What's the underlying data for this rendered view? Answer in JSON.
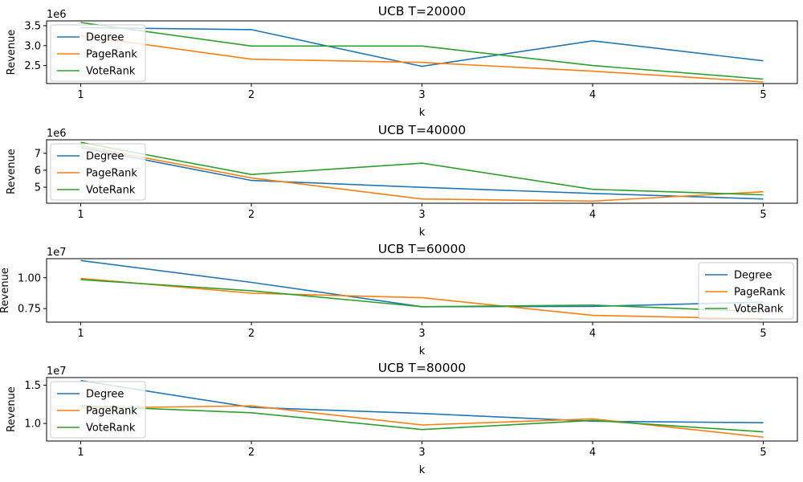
{
  "colors": {
    "Degree": "#1f77b4",
    "PageRank": "#ff7f0e",
    "VoteRank": "#2ca02c"
  },
  "chart_data": [
    {
      "type": "line",
      "title": "UCB T=20000",
      "xlabel": "k",
      "ylabel": "Revenue",
      "offset_label": "1e6",
      "scale": 1000000,
      "x": [
        1,
        2,
        3,
        4,
        5
      ],
      "ylim": [
        2.05,
        3.62
      ],
      "yticks": [
        2.5,
        3.0,
        3.5
      ],
      "ytick_labels": [
        "2.5",
        "3.0",
        "3.5"
      ],
      "legend": "upper-left",
      "series": [
        {
          "name": "Degree",
          "values": [
            3.45,
            3.4,
            2.48,
            3.12,
            2.62
          ]
        },
        {
          "name": "PageRank",
          "values": [
            3.25,
            2.66,
            2.58,
            2.36,
            2.09
          ]
        },
        {
          "name": "VoteRank",
          "values": [
            3.58,
            2.99,
            2.99,
            2.5,
            2.16
          ]
        }
      ]
    },
    {
      "type": "line",
      "title": "UCB T=40000",
      "xlabel": "k",
      "ylabel": "Revenue",
      "offset_label": "1e6",
      "scale": 1000000,
      "x": [
        1,
        2,
        3,
        4,
        5
      ],
      "ylim": [
        4.05,
        7.8
      ],
      "yticks": [
        5,
        6,
        7
      ],
      "ytick_labels": [
        "5",
        "6",
        "7"
      ],
      "legend": "upper-left",
      "series": [
        {
          "name": "Degree",
          "values": [
            7.35,
            5.4,
            4.99,
            4.63,
            4.3
          ]
        },
        {
          "name": "PageRank",
          "values": [
            7.45,
            5.55,
            4.3,
            4.18,
            4.73
          ]
        },
        {
          "name": "VoteRank",
          "values": [
            7.65,
            5.75,
            6.42,
            4.87,
            4.55
          ]
        }
      ]
    },
    {
      "type": "line",
      "title": "UCB T=60000",
      "xlabel": "k",
      "ylabel": "Revenue",
      "offset_label": "1e7",
      "scale": 10000000,
      "x": [
        1,
        2,
        3,
        4,
        5
      ],
      "ylim": [
        0.64,
        1.155
      ],
      "yticks": [
        0.75,
        1.0
      ],
      "ytick_labels": [
        "0.75",
        "1.00"
      ],
      "legend": "upper-right",
      "series": [
        {
          "name": "Degree",
          "values": [
            1.14,
            0.963,
            0.765,
            0.768,
            0.803
          ]
        },
        {
          "name": "PageRank",
          "values": [
            0.995,
            0.875,
            0.838,
            0.695,
            0.667
          ]
        },
        {
          "name": "VoteRank",
          "values": [
            0.985,
            0.895,
            0.765,
            0.778,
            0.725
          ]
        }
      ]
    },
    {
      "type": "line",
      "title": "UCB T=80000",
      "xlabel": "k",
      "ylabel": "Revenue",
      "offset_label": "1e7",
      "scale": 10000000,
      "x": [
        1,
        2,
        3,
        4,
        5
      ],
      "ylim": [
        0.77,
        1.6
      ],
      "yticks": [
        1.0,
        1.5
      ],
      "ytick_labels": [
        "1.0",
        "1.5"
      ],
      "legend": "upper-left",
      "series": [
        {
          "name": "Degree",
          "values": [
            1.56,
            1.21,
            1.13,
            1.03,
            1.01
          ]
        },
        {
          "name": "PageRank",
          "values": [
            1.2,
            1.23,
            0.98,
            1.06,
            0.82
          ]
        },
        {
          "name": "VoteRank",
          "values": [
            1.23,
            1.14,
            0.92,
            1.04,
            0.89
          ]
        }
      ]
    }
  ]
}
